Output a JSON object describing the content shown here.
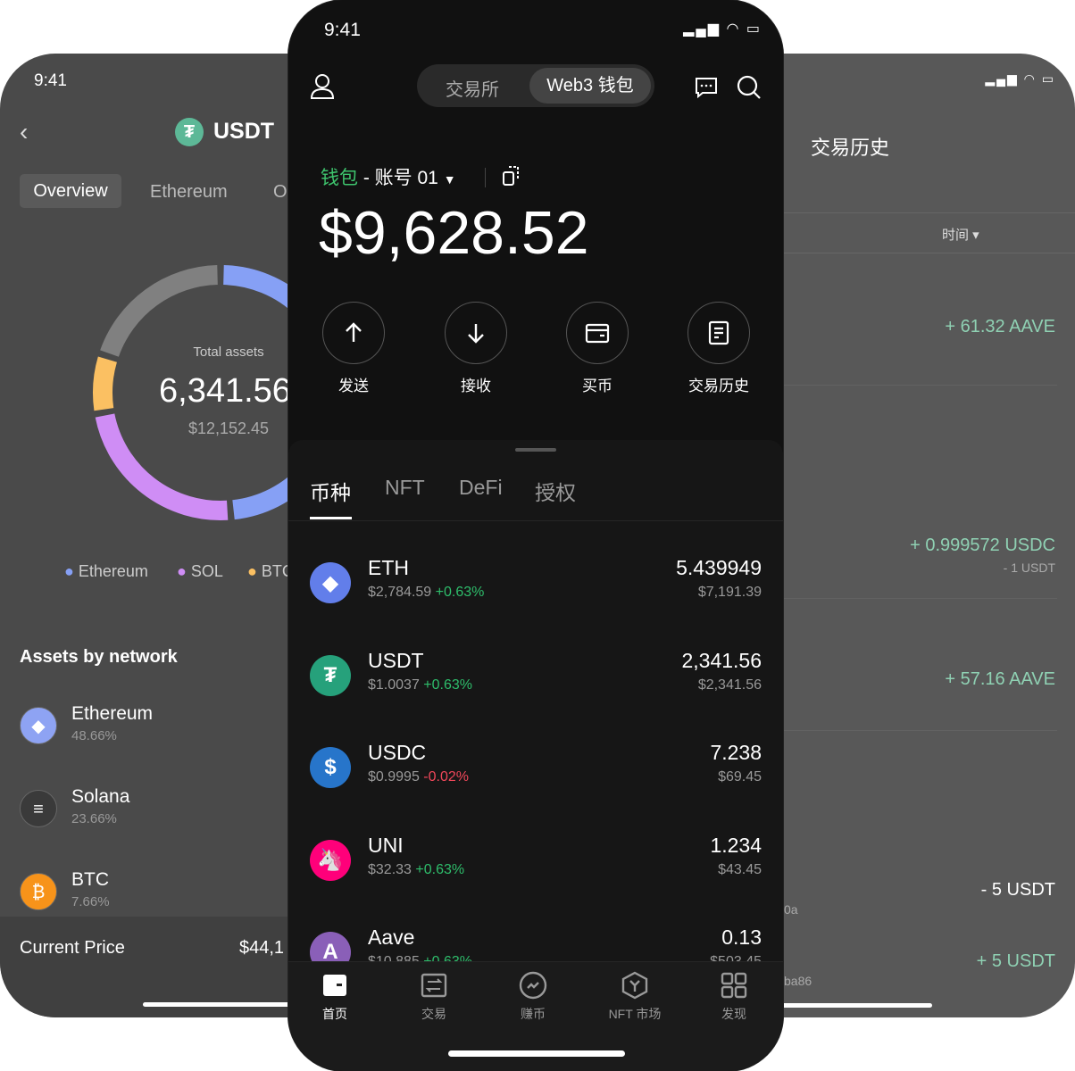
{
  "left": {
    "time": "9:41",
    "title": "USDT",
    "tabs": [
      "Overview",
      "Ethereum",
      "O"
    ],
    "total_label": "Total assets",
    "total_value": "6,341.56",
    "total_usd": "$12,152.45",
    "chart_data": {
      "type": "pie",
      "series": [
        {
          "name": "Ethereum",
          "value": 48.66,
          "color": "#86a0f5"
        },
        {
          "name": "SOL",
          "value": 23.66,
          "color": "#cf8df5"
        },
        {
          "name": "BTC",
          "value": 7.66,
          "color": "#fbc062"
        },
        {
          "name": "",
          "value": 20.02,
          "color": "#808080"
        }
      ]
    },
    "legend": [
      "Ethereum",
      "SOL",
      "BTC"
    ],
    "section_title": "Assets by network",
    "networks": [
      {
        "name": "Ethereum",
        "pct": "48.66%"
      },
      {
        "name": "Solana",
        "pct": "23.66%"
      },
      {
        "name": "BTC",
        "pct": "7.66%"
      }
    ],
    "price_label": "Current Price",
    "price_value": "$44,1"
  },
  "center": {
    "time": "9:41",
    "toggle": [
      "交易所",
      "Web3 钱包"
    ],
    "wallet_label": "钱包",
    "account": "- 账号 01",
    "balance": "$9,628.52",
    "actions": [
      "发送",
      "接收",
      "买币",
      "交易历史"
    ],
    "tabs": [
      "币种",
      "NFT",
      "DeFi",
      "授权"
    ],
    "coins": [
      {
        "name": "ETH",
        "price": "$2,784.59",
        "change": "+0.63%",
        "up": true,
        "amount": "5.439949",
        "value": "$7,191.39",
        "color": "#627eea",
        "glyph": "◆"
      },
      {
        "name": "USDT",
        "price": "$1.0037",
        "change": "+0.63%",
        "up": true,
        "amount": "2,341.56",
        "value": "$2,341.56",
        "color": "#26a17b",
        "glyph": "₮"
      },
      {
        "name": "USDC",
        "price": "$0.9995",
        "change": "-0.02%",
        "up": false,
        "amount": "7.238",
        "value": "$69.45",
        "color": "#2775ca",
        "glyph": "$"
      },
      {
        "name": "UNI",
        "price": "$32.33",
        "change": "+0.63%",
        "up": true,
        "amount": "1.234",
        "value": "$43.45",
        "color": "#ff007a",
        "glyph": "🦄"
      },
      {
        "name": "Aave",
        "price": "$10.885",
        "change": "+0.63%",
        "up": true,
        "amount": "0.13",
        "value": "$503.45",
        "color": "#8a5fb8",
        "glyph": "A"
      }
    ],
    "nav": [
      "首页",
      "交易",
      "赚币",
      "NFT 市场",
      "发现"
    ]
  },
  "right": {
    "title": "交易历史",
    "filter": "时间",
    "rows": [
      {
        "amount": "+ 61.32 AAVE",
        "sub": ""
      },
      {
        "amount": "+ 0.999572 USDC",
        "sub": "- 1 USDT"
      },
      {
        "amount": "+ 57.16 AAVE",
        "sub": ""
      },
      {
        "amount": "- 5 USDT",
        "sub": "",
        "left": "0a"
      },
      {
        "amount": "+ 5 USDT",
        "sub": "",
        "left": "ba86"
      }
    ]
  }
}
